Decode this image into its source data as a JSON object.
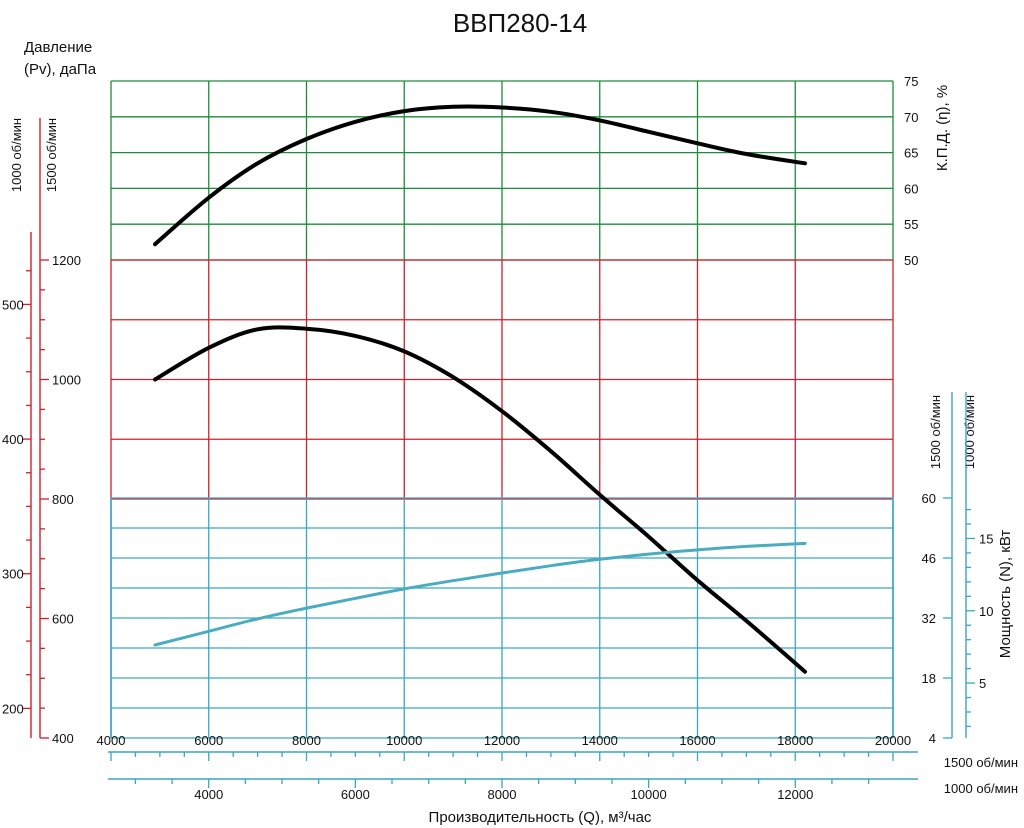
{
  "chart_data": {
    "type": "line",
    "title": "ВВП280-14",
    "xlabel": "Производительность (Q), м³/час",
    "x_axes": [
      {
        "name": "1500 об/мин",
        "range": [
          4000,
          20000
        ],
        "ticks": [
          "4000",
          "6000",
          "8000",
          "10000",
          "12000",
          "14000",
          "16000",
          "18000",
          "20000"
        ],
        "minor_step": 500
      },
      {
        "name": "1000 об/мин",
        "range": [
          2667,
          13333
        ],
        "ticks": [
          "4000",
          "6000",
          "8000",
          "10000",
          "12000"
        ],
        "minor_step": 500
      }
    ],
    "pressure_axis": {
      "label_line1": "Давление",
      "label_line2": "(Pv), даПа",
      "scale_1500": {
        "name": "1500 об/мин",
        "range": [
          400,
          1200
        ],
        "ticks": [
          "400",
          "600",
          "800",
          "1000",
          "1200"
        ],
        "minor_step": 50
      },
      "scale_1000": {
        "name": "1000 об/мин",
        "range": [
          178,
          533
        ],
        "ticks": [
          "200",
          "300",
          "400",
          "500"
        ],
        "minor_step": 25
      }
    },
    "efficiency_axis": {
      "label": "К.П.Д. (η), %",
      "range": [
        50,
        75
      ],
      "ticks": [
        "50",
        "55",
        "60",
        "65",
        "70",
        "75"
      ]
    },
    "power_axis": {
      "label": "Мощность (N), кВт",
      "scale_1500": {
        "name": "1500 об/мин",
        "range": [
          4,
          60
        ],
        "ticks": [
          "4",
          "18",
          "32",
          "46",
          "60"
        ]
      },
      "scale_1000": {
        "name": "1000 об/мин",
        "range": [
          1.2,
          17.8
        ],
        "ticks": [
          "5",
          "10",
          "15"
        ],
        "minor_step": 1
      }
    },
    "grid": true,
    "series": [
      {
        "key": "efficiency",
        "x": [
          4900,
          6000,
          7000,
          8000,
          9000,
          10000,
          11000,
          12000,
          13000,
          14000,
          15000,
          16000,
          17000,
          18200
        ],
        "y": [
          52.2,
          58.7,
          63.5,
          66.9,
          69.3,
          70.8,
          71.4,
          71.3,
          70.7,
          69.5,
          67.9,
          66.3,
          64.8,
          63.5
        ]
      },
      {
        "key": "pressure",
        "x": [
          4900,
          6000,
          7000,
          8000,
          9000,
          10000,
          11000,
          12000,
          13000,
          14000,
          15000,
          16000,
          17000,
          18200
        ],
        "y": [
          1000,
          1053,
          1084,
          1085,
          1073,
          1047,
          1004,
          947,
          880,
          807,
          737,
          664,
          596,
          511
        ]
      },
      {
        "key": "power",
        "x": [
          4900,
          6000,
          7000,
          8000,
          9000,
          10000,
          11000,
          12000,
          13000,
          14000,
          15000,
          16000,
          17000,
          18200
        ],
        "y": [
          25.7,
          28.9,
          31.8,
          34.3,
          36.6,
          38.8,
          40.7,
          42.5,
          44.2,
          45.7,
          46.9,
          47.9,
          48.7,
          49.4
        ]
      }
    ],
    "colors": {
      "efficiency_zone": "#1e8c3a",
      "pressure_zone": "#d0202a",
      "power_zone": "#3aa6c4",
      "curve_main": "#000000",
      "curve_power": "#4aacc0",
      "text": "#111111"
    }
  }
}
